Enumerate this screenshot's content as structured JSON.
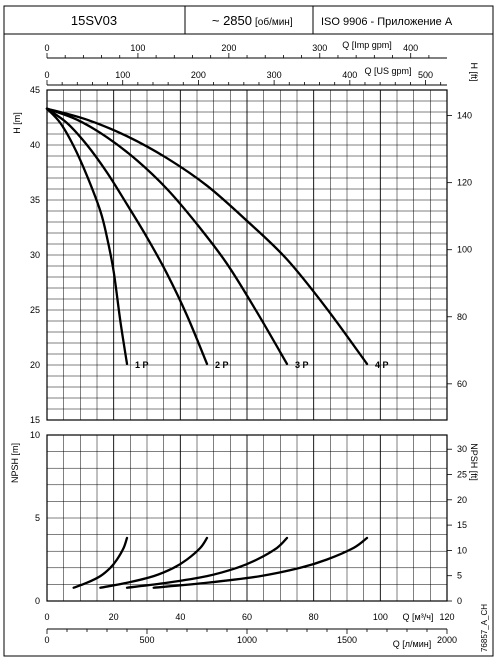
{
  "header": {
    "model": "15SV03",
    "speed": "~ 2850",
    "speed_unit": "[об/мин]",
    "standard": "ISO 9906 - Приложение A"
  },
  "side_code": "76857_A_CH",
  "chart_data": [
    {
      "type": "line",
      "name": "head-curves",
      "ylabel": "H [m]",
      "ylabel_right": "H [ft]",
      "ylim": [
        15,
        45
      ],
      "yticks": [
        15,
        20,
        25,
        30,
        35,
        40,
        45
      ],
      "ylim_right": [
        49.2,
        147.6
      ],
      "yticks_right": [
        60,
        80,
        100,
        120,
        140
      ],
      "xlim": [
        0,
        120
      ],
      "x_unit": "m³/h",
      "top_axis_imp": {
        "label": "Q [Imp gpm]",
        "ticks": [
          0,
          100,
          200,
          300,
          400
        ],
        "factor": 3.666
      },
      "top_axis_us": {
        "label": "Q [US gpm]",
        "ticks": [
          0,
          100,
          200,
          300,
          400,
          500
        ],
        "factor": 4.403
      },
      "grid": true,
      "series": [
        {
          "label": "1 P",
          "x": [
            0,
            4,
            8,
            12,
            16,
            18,
            20,
            22,
            24
          ],
          "y": [
            43.3,
            42.0,
            39.9,
            37.2,
            34.0,
            31.6,
            28.5,
            24.0,
            20.1
          ]
        },
        {
          "label": "2 P",
          "x": [
            0,
            6,
            12,
            18,
            24,
            30,
            36,
            42,
            48
          ],
          "y": [
            43.3,
            42.0,
            40.0,
            37.5,
            34.6,
            31.6,
            28.3,
            24.5,
            20.1
          ]
        },
        {
          "label": "3 P",
          "x": [
            0,
            9,
            18,
            27,
            36,
            45,
            54,
            63,
            72
          ],
          "y": [
            43.3,
            42.3,
            40.7,
            38.6,
            36.0,
            32.8,
            29.2,
            24.8,
            20.1
          ]
        },
        {
          "label": "4 P",
          "x": [
            0,
            12,
            24,
            36,
            48,
            60,
            72,
            84,
            96
          ],
          "y": [
            43.3,
            42.3,
            40.8,
            38.8,
            36.3,
            33.1,
            29.6,
            25.1,
            20.1
          ]
        }
      ]
    },
    {
      "type": "line",
      "name": "npsh-curves",
      "ylabel": "NPSH [m]",
      "ylabel_right": "NPSH [ft]",
      "ylim": [
        0,
        10
      ],
      "yticks": [
        0,
        5,
        10
      ],
      "ylim_right": [
        0,
        32.8
      ],
      "yticks_right": [
        0,
        5,
        10,
        15,
        20,
        25,
        30
      ],
      "xlim": [
        0,
        120
      ],
      "xlabel": "Q [м³/ч]",
      "xticks": [
        0,
        20,
        40,
        60,
        80,
        100,
        120
      ],
      "bottom_axis_lmin": {
        "label": "Q [л/мин]",
        "ticks": [
          0,
          500,
          1000,
          1500,
          2000
        ],
        "factor": 16.667
      },
      "grid": true,
      "series": [
        {
          "x": [
            8,
            12,
            16,
            19,
            21,
            23,
            24
          ],
          "y": [
            0.8,
            1.1,
            1.5,
            2.0,
            2.5,
            3.2,
            3.8
          ]
        },
        {
          "x": [
            16,
            24,
            32,
            38,
            42,
            46,
            48
          ],
          "y": [
            0.8,
            1.1,
            1.5,
            2.0,
            2.5,
            3.2,
            3.8
          ]
        },
        {
          "x": [
            24,
            36,
            48,
            57,
            63,
            69,
            72
          ],
          "y": [
            0.8,
            1.1,
            1.5,
            2.0,
            2.5,
            3.2,
            3.8
          ]
        },
        {
          "x": [
            32,
            48,
            64,
            76,
            84,
            92,
            96
          ],
          "y": [
            0.8,
            1.1,
            1.5,
            2.0,
            2.5,
            3.2,
            3.8
          ]
        }
      ]
    }
  ]
}
